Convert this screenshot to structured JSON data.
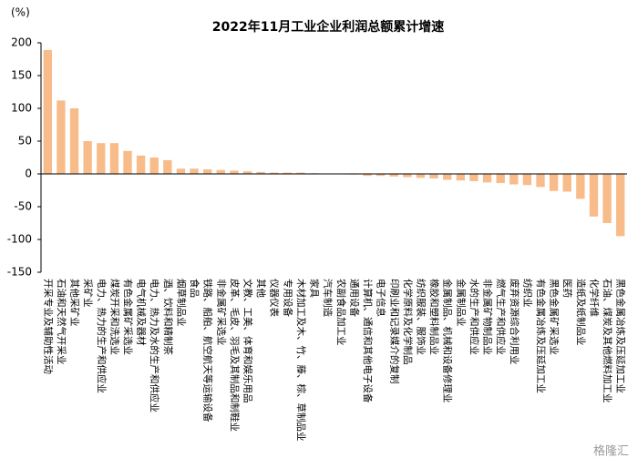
{
  "chart_data": {
    "type": "bar",
    "title": "2022年11月工业企业利润总额累计增速",
    "y_unit": "(%)",
    "watermark": "格隆汇",
    "categories": [
      "开采专业及辅助性活动",
      "石油和天然气开采业",
      "其他采矿业",
      "采矿业",
      "电力、热力的生产和供应业",
      "煤炭开采和洗选业",
      "有色金属矿采选业",
      "电气机械及器材",
      "电力、热力及水的生产和供应业",
      "酒、饮料和精制茶",
      "烟草制品业",
      "食品",
      "铁路、船舶、航空航天等运输设备",
      "非金属矿采选业",
      "皮革、毛皮、羽毛及其制品和制鞋业",
      "文教、工美、体育和娱乐用品",
      "其他",
      "仪器仪表",
      "专用设备",
      "木材加工及木、竹、藤、棕、草制品业",
      "家具",
      "汽车制造",
      "农副食品加工业",
      "通用设备",
      "计算机、通信和其他电子设备",
      "电子信息",
      "印刷业和记录媒介的复制",
      "化学原料及化学制品",
      "纺织服装、服饰业",
      "橡胶和塑料制品业",
      "金属制品、机械和设备修理业",
      "金属制品业",
      "水的生产和供应业",
      "非金属矿物制品业",
      "燃气生产和供应业",
      "废弃资源综合利用业",
      "纺织业",
      "有色金属冶炼及压延加工业",
      "黑色金属矿采选业",
      "医药",
      "造纸及纸制品业",
      "化学纤维",
      "石油、煤炭及其他燃料加工业",
      "黑色金属冶炼及压延加工业"
    ],
    "values": [
      189,
      112,
      100,
      50,
      47,
      47,
      35,
      28,
      25,
      21,
      8,
      8,
      7,
      6,
      5,
      4,
      3,
      2,
      2,
      2,
      1,
      0.5,
      -0.5,
      -1,
      -3,
      -3,
      -4,
      -5,
      -6,
      -7,
      -9,
      -10,
      -11,
      -13,
      -14,
      -16,
      -17,
      -20,
      -26,
      -27,
      -38,
      -65,
      -75,
      -95
    ],
    "color": "#f8bc8a",
    "ylim": [
      -150,
      200
    ],
    "yticks": [
      -150,
      -100,
      -50,
      0,
      50,
      100,
      150,
      200
    ]
  }
}
